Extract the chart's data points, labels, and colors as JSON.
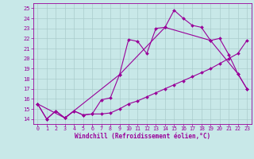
{
  "xlabel": "Windchill (Refroidissement éolien,°C)",
  "background_color": "#c8e8e8",
  "grid_color": "#aacccc",
  "line_color": "#990099",
  "xlim": [
    -0.5,
    23.5
  ],
  "ylim": [
    13.5,
    25.5
  ],
  "xticks": [
    0,
    1,
    2,
    3,
    4,
    5,
    6,
    7,
    8,
    9,
    10,
    11,
    12,
    13,
    14,
    15,
    16,
    17,
    18,
    19,
    20,
    21,
    22,
    23
  ],
  "yticks": [
    14,
    15,
    16,
    17,
    18,
    19,
    20,
    21,
    22,
    23,
    24,
    25
  ],
  "series1_x": [
    0,
    1,
    2,
    3,
    4,
    5,
    6,
    7,
    8,
    9,
    10,
    11,
    12,
    13,
    14,
    15,
    16,
    17,
    18,
    19,
    20,
    21,
    22,
    23
  ],
  "series1_y": [
    15.5,
    14.0,
    14.8,
    14.1,
    14.8,
    14.4,
    14.5,
    15.9,
    16.1,
    18.4,
    21.9,
    21.7,
    20.5,
    23.0,
    23.1,
    24.8,
    24.0,
    23.3,
    23.1,
    21.8,
    22.0,
    20.4,
    18.5,
    17.0
  ],
  "series2_x": [
    0,
    1,
    2,
    3,
    4,
    5,
    6,
    7,
    8,
    9,
    10,
    11,
    12,
    13,
    14,
    15,
    16,
    17,
    18,
    19,
    20,
    21,
    22,
    23
  ],
  "series2_y": [
    15.5,
    14.0,
    14.8,
    14.1,
    14.8,
    14.4,
    14.5,
    14.5,
    14.6,
    15.0,
    15.5,
    15.8,
    16.2,
    16.6,
    17.0,
    17.4,
    17.8,
    18.2,
    18.6,
    19.0,
    19.5,
    20.0,
    20.5,
    21.8
  ],
  "series3_x": [
    0,
    3,
    9,
    14,
    19,
    22,
    23
  ],
  "series3_y": [
    15.5,
    14.1,
    18.4,
    23.1,
    21.8,
    18.5,
    17.0
  ],
  "xlabel_fontsize": 5.5,
  "tick_fontsize": 4.8,
  "marker_size": 2.0,
  "line_width": 0.8
}
